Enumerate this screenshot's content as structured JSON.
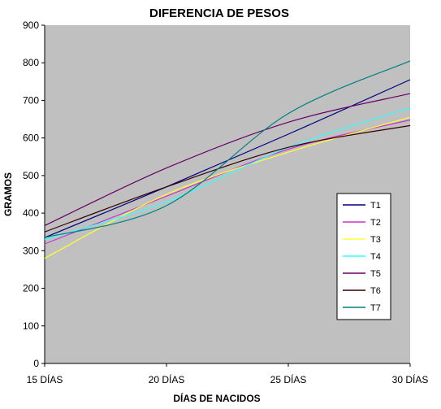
{
  "chart_data": {
    "type": "line",
    "title": "DIFERENCIA DE PESOS",
    "xlabel": "DÍAS DE NACIDOS",
    "ylabel": "GRAMOS",
    "x": [
      15,
      20,
      25,
      30
    ],
    "x_tick_labels": [
      "15 DÍAS",
      "20 DÍAS",
      "25 DÍAS",
      "30  DÍAS"
    ],
    "xlim": [
      15,
      30
    ],
    "ylim": [
      0,
      900
    ],
    "y_ticks": [
      0,
      100,
      200,
      300,
      400,
      500,
      600,
      700,
      800,
      900
    ],
    "grid": false,
    "plot_background": "#c0c0c0",
    "legend_position": "right",
    "series": [
      {
        "name": "T1",
        "color": "#000080",
        "values": [
          335,
          470,
          610,
          755
        ]
      },
      {
        "name": "T2",
        "color": "#cc33cc",
        "values": [
          318,
          445,
          570,
          648
        ]
      },
      {
        "name": "T3",
        "color": "#ffff33",
        "values": [
          280,
          450,
          562,
          655
        ]
      },
      {
        "name": "T4",
        "color": "#33ffff",
        "values": [
          330,
          430,
          575,
          680
        ]
      },
      {
        "name": "T5",
        "color": "#660066",
        "values": [
          367,
          520,
          642,
          718
        ]
      },
      {
        "name": "T6",
        "color": "#330000",
        "values": [
          350,
          470,
          575,
          633
        ]
      },
      {
        "name": "T7",
        "color": "#008080",
        "values": [
          335,
          420,
          665,
          805
        ]
      }
    ]
  }
}
